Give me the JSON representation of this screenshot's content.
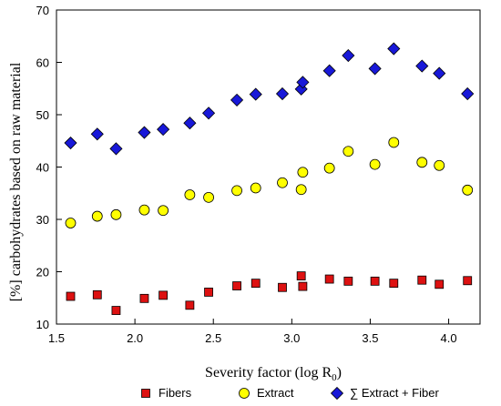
{
  "chart_data": {
    "type": "scatter",
    "xlabel": "Severity factor (log R",
    "xlabel_sub": "0",
    "xlabel_end": ")",
    "ylabel": "[%] carbohydrates based on raw material",
    "xlim": [
      1.5,
      4.2
    ],
    "ylim": [
      10,
      70
    ],
    "x_ticks": [
      "1.5",
      "2.0",
      "2.5",
      "3.0",
      "3.5",
      "4.0"
    ],
    "y_ticks": [
      "10",
      "20",
      "30",
      "40",
      "50",
      "60",
      "70"
    ],
    "legend_position": "bottom",
    "series": [
      {
        "name": "Fibers",
        "marker": "square",
        "color": "#dd1111",
        "points": [
          [
            1.59,
            15.3
          ],
          [
            1.76,
            15.6
          ],
          [
            1.88,
            12.6
          ],
          [
            2.06,
            14.9
          ],
          [
            2.18,
            15.5
          ],
          [
            2.35,
            13.6
          ],
          [
            2.47,
            16.1
          ],
          [
            2.65,
            17.3
          ],
          [
            2.77,
            17.8
          ],
          [
            2.94,
            17.0
          ],
          [
            3.06,
            19.2
          ],
          [
            3.07,
            17.2
          ],
          [
            3.24,
            18.6
          ],
          [
            3.36,
            18.2
          ],
          [
            3.53,
            18.2
          ],
          [
            3.65,
            17.8
          ],
          [
            3.83,
            18.4
          ],
          [
            3.94,
            17.6
          ],
          [
            4.12,
            18.3
          ]
        ]
      },
      {
        "name": "Extract",
        "marker": "circle",
        "color": "#ffff00",
        "points": [
          [
            1.59,
            29.3
          ],
          [
            1.76,
            30.6
          ],
          [
            1.88,
            30.9
          ],
          [
            2.06,
            31.8
          ],
          [
            2.18,
            31.7
          ],
          [
            2.35,
            34.7
          ],
          [
            2.47,
            34.2
          ],
          [
            2.65,
            35.5
          ],
          [
            2.77,
            36.0
          ],
          [
            2.94,
            37.0
          ],
          [
            3.06,
            35.7
          ],
          [
            3.07,
            39.0
          ],
          [
            3.24,
            39.8
          ],
          [
            3.36,
            43.0
          ],
          [
            3.53,
            40.5
          ],
          [
            3.65,
            44.7
          ],
          [
            3.83,
            40.9
          ],
          [
            3.94,
            40.3
          ],
          [
            4.12,
            35.6
          ]
        ]
      },
      {
        "name": "∑ Extract + Fiber",
        "marker": "diamond",
        "color": "#1818d8",
        "points": [
          [
            1.59,
            44.6
          ],
          [
            1.76,
            46.3
          ],
          [
            1.88,
            43.5
          ],
          [
            2.06,
            46.6
          ],
          [
            2.18,
            47.2
          ],
          [
            2.35,
            48.4
          ],
          [
            2.47,
            50.3
          ],
          [
            2.65,
            52.8
          ],
          [
            2.77,
            53.9
          ],
          [
            2.94,
            54.0
          ],
          [
            3.06,
            54.9
          ],
          [
            3.07,
            56.2
          ],
          [
            3.24,
            58.4
          ],
          [
            3.36,
            61.3
          ],
          [
            3.53,
            58.8
          ],
          [
            3.65,
            62.6
          ],
          [
            3.83,
            59.3
          ],
          [
            3.94,
            57.9
          ],
          [
            4.12,
            54.0
          ]
        ]
      }
    ]
  }
}
